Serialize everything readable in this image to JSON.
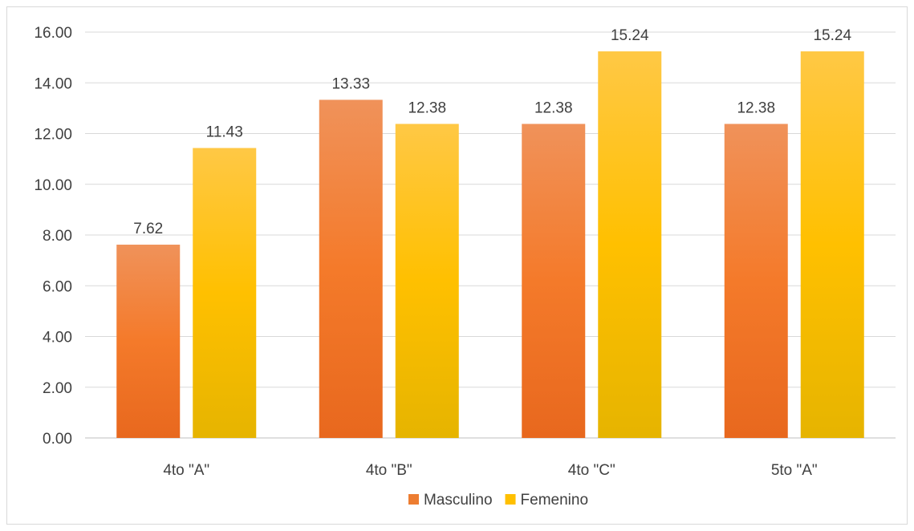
{
  "chart_data": {
    "type": "bar",
    "title": "",
    "xlabel": "",
    "ylabel": "",
    "categories": [
      "4to \"A\"",
      "4to \"B\"",
      "4to \"C\"",
      "5to \"A\""
    ],
    "series": [
      {
        "name": "Masculino",
        "values": [
          7.62,
          13.33,
          12.38,
          12.38
        ],
        "color": "#ED7D31"
      },
      {
        "name": "Femenino",
        "values": [
          11.43,
          12.38,
          15.24,
          15.24
        ],
        "color": "#FFC000"
      }
    ],
    "data_labels": [
      [
        "7.62",
        "13.33",
        "12.38",
        "12.38"
      ],
      [
        "11.43",
        "12.38",
        "15.24",
        "15.24"
      ]
    ],
    "ylim": [
      0,
      16
    ],
    "yticks": [
      "0.00",
      "2.00",
      "4.00",
      "6.00",
      "8.00",
      "10.00",
      "12.00",
      "14.00",
      "16.00"
    ],
    "grid": true,
    "legend": {
      "position": "bottom",
      "entries": [
        "Masculino",
        "Femenino"
      ]
    }
  }
}
